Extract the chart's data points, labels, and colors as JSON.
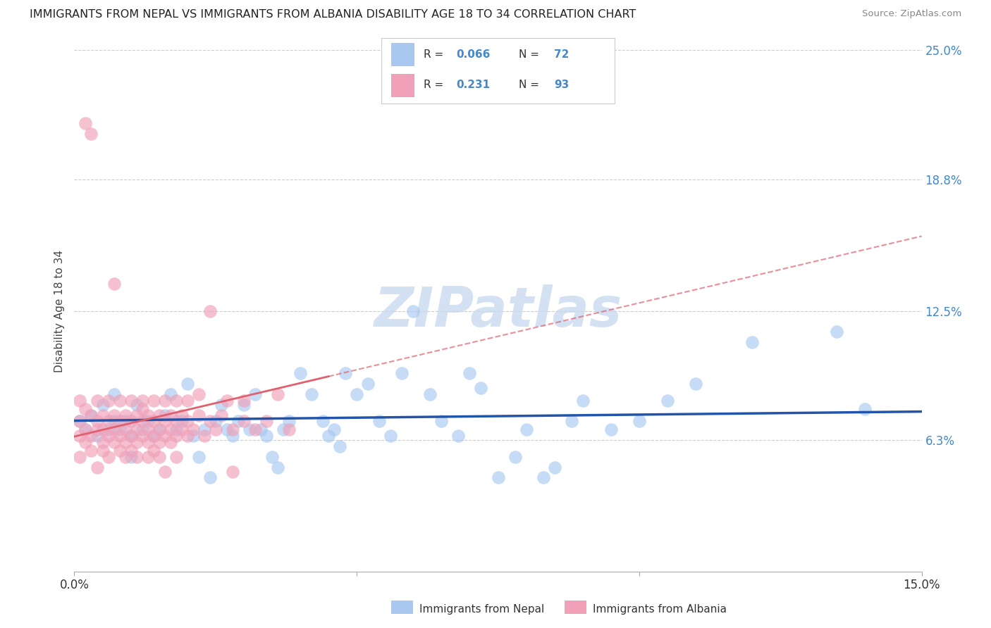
{
  "title": "IMMIGRANTS FROM NEPAL VS IMMIGRANTS FROM ALBANIA DISABILITY AGE 18 TO 34 CORRELATION CHART",
  "source": "Source: ZipAtlas.com",
  "ylabel": "Disability Age 18 to 34",
  "xlim": [
    0.0,
    0.15
  ],
  "ylim": [
    0.0,
    0.25
  ],
  "xticks": [
    0.0,
    0.05,
    0.1,
    0.15
  ],
  "xticklabels": [
    "0.0%",
    "",
    "",
    "15.0%"
  ],
  "yticks_right": [
    0.063,
    0.125,
    0.188,
    0.25
  ],
  "yticklabels_right": [
    "6.3%",
    "12.5%",
    "18.8%",
    "25.0%"
  ],
  "nepal_color": "#a8c8f0",
  "albania_color": "#f0a0b8",
  "nepal_line_color": "#2255aa",
  "albania_line_color": "#e06070",
  "watermark_color": "#c8daf0",
  "watermark": "ZIPatlas",
  "nepal_R": 0.066,
  "nepal_N": 72,
  "albania_R": 0.231,
  "albania_N": 93,
  "nepal_scatter": [
    [
      0.001,
      0.072
    ],
    [
      0.002,
      0.068
    ],
    [
      0.003,
      0.075
    ],
    [
      0.004,
      0.065
    ],
    [
      0.005,
      0.08
    ],
    [
      0.006,
      0.068
    ],
    [
      0.007,
      0.072
    ],
    [
      0.007,
      0.085
    ],
    [
      0.008,
      0.068
    ],
    [
      0.009,
      0.072
    ],
    [
      0.01,
      0.065
    ],
    [
      0.01,
      0.055
    ],
    [
      0.011,
      0.08
    ],
    [
      0.012,
      0.068
    ],
    [
      0.013,
      0.072
    ],
    [
      0.014,
      0.065
    ],
    [
      0.015,
      0.068
    ],
    [
      0.016,
      0.075
    ],
    [
      0.017,
      0.085
    ],
    [
      0.018,
      0.068
    ],
    [
      0.019,
      0.072
    ],
    [
      0.02,
      0.09
    ],
    [
      0.021,
      0.065
    ],
    [
      0.022,
      0.055
    ],
    [
      0.023,
      0.068
    ],
    [
      0.024,
      0.045
    ],
    [
      0.025,
      0.072
    ],
    [
      0.026,
      0.08
    ],
    [
      0.027,
      0.068
    ],
    [
      0.028,
      0.065
    ],
    [
      0.029,
      0.072
    ],
    [
      0.03,
      0.08
    ],
    [
      0.031,
      0.068
    ],
    [
      0.032,
      0.085
    ],
    [
      0.033,
      0.068
    ],
    [
      0.034,
      0.065
    ],
    [
      0.035,
      0.055
    ],
    [
      0.036,
      0.05
    ],
    [
      0.037,
      0.068
    ],
    [
      0.038,
      0.072
    ],
    [
      0.04,
      0.095
    ],
    [
      0.042,
      0.085
    ],
    [
      0.044,
      0.072
    ],
    [
      0.045,
      0.065
    ],
    [
      0.046,
      0.068
    ],
    [
      0.047,
      0.06
    ],
    [
      0.048,
      0.095
    ],
    [
      0.05,
      0.085
    ],
    [
      0.052,
      0.09
    ],
    [
      0.054,
      0.072
    ],
    [
      0.056,
      0.065
    ],
    [
      0.058,
      0.095
    ],
    [
      0.06,
      0.125
    ],
    [
      0.063,
      0.085
    ],
    [
      0.065,
      0.072
    ],
    [
      0.068,
      0.065
    ],
    [
      0.07,
      0.095
    ],
    [
      0.072,
      0.088
    ],
    [
      0.075,
      0.045
    ],
    [
      0.078,
      0.055
    ],
    [
      0.08,
      0.068
    ],
    [
      0.083,
      0.045
    ],
    [
      0.085,
      0.05
    ],
    [
      0.088,
      0.072
    ],
    [
      0.09,
      0.082
    ],
    [
      0.095,
      0.068
    ],
    [
      0.1,
      0.072
    ],
    [
      0.105,
      0.082
    ],
    [
      0.11,
      0.09
    ],
    [
      0.12,
      0.11
    ],
    [
      0.135,
      0.115
    ],
    [
      0.14,
      0.078
    ]
  ],
  "albania_scatter": [
    [
      0.001,
      0.072
    ],
    [
      0.001,
      0.065
    ],
    [
      0.001,
      0.082
    ],
    [
      0.001,
      0.055
    ],
    [
      0.002,
      0.068
    ],
    [
      0.002,
      0.078
    ],
    [
      0.002,
      0.215
    ],
    [
      0.002,
      0.062
    ],
    [
      0.003,
      0.075
    ],
    [
      0.003,
      0.065
    ],
    [
      0.003,
      0.21
    ],
    [
      0.003,
      0.058
    ],
    [
      0.004,
      0.082
    ],
    [
      0.004,
      0.072
    ],
    [
      0.004,
      0.068
    ],
    [
      0.004,
      0.05
    ],
    [
      0.005,
      0.068
    ],
    [
      0.005,
      0.075
    ],
    [
      0.005,
      0.062
    ],
    [
      0.005,
      0.058
    ],
    [
      0.006,
      0.072
    ],
    [
      0.006,
      0.082
    ],
    [
      0.006,
      0.065
    ],
    [
      0.006,
      0.055
    ],
    [
      0.007,
      0.068
    ],
    [
      0.007,
      0.075
    ],
    [
      0.007,
      0.138
    ],
    [
      0.007,
      0.062
    ],
    [
      0.008,
      0.072
    ],
    [
      0.008,
      0.065
    ],
    [
      0.008,
      0.082
    ],
    [
      0.008,
      0.058
    ],
    [
      0.009,
      0.068
    ],
    [
      0.009,
      0.075
    ],
    [
      0.009,
      0.062
    ],
    [
      0.009,
      0.055
    ],
    [
      0.01,
      0.072
    ],
    [
      0.01,
      0.065
    ],
    [
      0.01,
      0.082
    ],
    [
      0.01,
      0.058
    ],
    [
      0.011,
      0.068
    ],
    [
      0.011,
      0.075
    ],
    [
      0.011,
      0.062
    ],
    [
      0.011,
      0.055
    ],
    [
      0.012,
      0.072
    ],
    [
      0.012,
      0.065
    ],
    [
      0.012,
      0.082
    ],
    [
      0.012,
      0.078
    ],
    [
      0.013,
      0.068
    ],
    [
      0.013,
      0.075
    ],
    [
      0.013,
      0.062
    ],
    [
      0.013,
      0.055
    ],
    [
      0.014,
      0.072
    ],
    [
      0.014,
      0.065
    ],
    [
      0.014,
      0.082
    ],
    [
      0.014,
      0.058
    ],
    [
      0.015,
      0.068
    ],
    [
      0.015,
      0.075
    ],
    [
      0.015,
      0.062
    ],
    [
      0.015,
      0.055
    ],
    [
      0.016,
      0.072
    ],
    [
      0.016,
      0.082
    ],
    [
      0.016,
      0.065
    ],
    [
      0.016,
      0.048
    ],
    [
      0.017,
      0.068
    ],
    [
      0.017,
      0.075
    ],
    [
      0.017,
      0.062
    ],
    [
      0.018,
      0.072
    ],
    [
      0.018,
      0.065
    ],
    [
      0.018,
      0.082
    ],
    [
      0.018,
      0.055
    ],
    [
      0.019,
      0.068
    ],
    [
      0.019,
      0.075
    ],
    [
      0.02,
      0.072
    ],
    [
      0.02,
      0.065
    ],
    [
      0.02,
      0.082
    ],
    [
      0.021,
      0.068
    ],
    [
      0.022,
      0.075
    ],
    [
      0.022,
      0.085
    ],
    [
      0.023,
      0.065
    ],
    [
      0.024,
      0.072
    ],
    [
      0.024,
      0.125
    ],
    [
      0.025,
      0.068
    ],
    [
      0.026,
      0.075
    ],
    [
      0.027,
      0.082
    ],
    [
      0.028,
      0.068
    ],
    [
      0.028,
      0.048
    ],
    [
      0.03,
      0.072
    ],
    [
      0.03,
      0.082
    ],
    [
      0.032,
      0.068
    ],
    [
      0.034,
      0.072
    ],
    [
      0.036,
      0.085
    ],
    [
      0.038,
      0.068
    ]
  ]
}
